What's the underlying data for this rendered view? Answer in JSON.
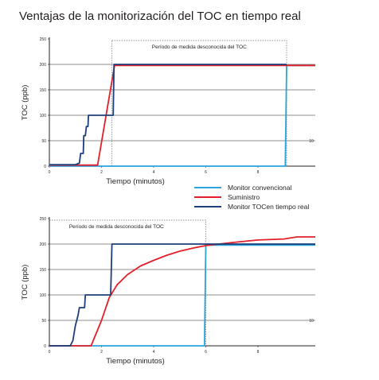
{
  "title": "Ventajas de la monitorización del TOC en tiempo real",
  "legend": [
    {
      "label": "Monitor convencional",
      "color": "#2ba3dc"
    },
    {
      "label": "Suministro",
      "color": "#e3202a"
    },
    {
      "label": "Monitor TOCen tiempo real",
      "color": "#1c3f7a"
    }
  ],
  "chart_data": [
    {
      "type": "line",
      "xlabel": "Tiempo (minutos)",
      "ylabel": "TOC (ppb)",
      "xlim": [
        0,
        10.2
      ],
      "ylim": [
        0,
        250
      ],
      "x_ticks": [
        "0",
        "2",
        "4",
        "6",
        "8"
      ],
      "y_ticks": [
        "0",
        "50",
        "100",
        "150",
        "200",
        "250"
      ],
      "grid_y": [
        50,
        100,
        150,
        200
      ],
      "right_tick_label": "10",
      "annotation": "Período de medida desconocida del TOC",
      "annotation_box": {
        "x": [
          2.4,
          9.1
        ],
        "y": [
          0,
          247
        ]
      },
      "series": [
        {
          "name": "Monitor convencional",
          "color": "#2ba3dc",
          "x": [
            0,
            9.05,
            9.1,
            10.2
          ],
          "y": [
            0,
            0,
            198,
            198
          ]
        },
        {
          "name": "Suministro",
          "color": "#e3202a",
          "x": [
            0,
            1.85,
            2.5,
            10.2
          ],
          "y": [
            2,
            2,
            198,
            198
          ]
        },
        {
          "name": "Monitor TOCen tiempo real",
          "color": "#1c3f7a",
          "x": [
            0,
            1.0,
            1.15,
            1.2,
            1.3,
            1.32,
            1.38,
            1.42,
            1.48,
            1.5,
            2.45,
            2.48,
            9.1
          ],
          "y": [
            3,
            3,
            6,
            25,
            25,
            60,
            60,
            78,
            78,
            100,
            100,
            200,
            200
          ]
        }
      ]
    },
    {
      "type": "line",
      "xlabel": "Tiempo (minutos)",
      "ylabel": "TOC (ppb)",
      "xlim": [
        0,
        10.2
      ],
      "ylim": [
        0,
        250
      ],
      "x_ticks": [
        "0",
        "2",
        "4",
        "6",
        "8"
      ],
      "y_ticks": [
        "0",
        "50",
        "100",
        "150",
        "200",
        "250"
      ],
      "grid_y": [
        50,
        100,
        150,
        200
      ],
      "right_tick_label": "10",
      "annotation": "Período de medida desconocida del TOC",
      "annotation_box": {
        "x": [
          0,
          6
        ],
        "y": [
          0,
          247
        ]
      },
      "series": [
        {
          "name": "Monitor convencional",
          "color": "#2ba3dc",
          "x": [
            0,
            5.95,
            6.0,
            10.2
          ],
          "y": [
            0,
            0,
            198,
            198
          ]
        },
        {
          "name": "Suministro",
          "color": "#e3202a",
          "x": [
            0,
            1.6,
            2.0,
            2.3,
            2.6,
            3.0,
            3.5,
            4.0,
            4.5,
            5.0,
            5.5,
            6.0,
            7.0,
            8.0,
            9.0,
            9.5,
            10.2
          ],
          "y": [
            0,
            0,
            50,
            95,
            120,
            140,
            157,
            168,
            178,
            186,
            192,
            197,
            203,
            208,
            210,
            214,
            214
          ]
        },
        {
          "name": "Monitor TOCen tiempo real",
          "color": "#1c3f7a",
          "x": [
            0,
            0.8,
            0.9,
            1.0,
            1.05,
            1.1,
            1.15,
            1.35,
            1.38,
            2.35,
            2.4,
            10.2
          ],
          "y": [
            0,
            0,
            10,
            40,
            50,
            60,
            75,
            75,
            100,
            100,
            200,
            200
          ]
        }
      ]
    }
  ]
}
